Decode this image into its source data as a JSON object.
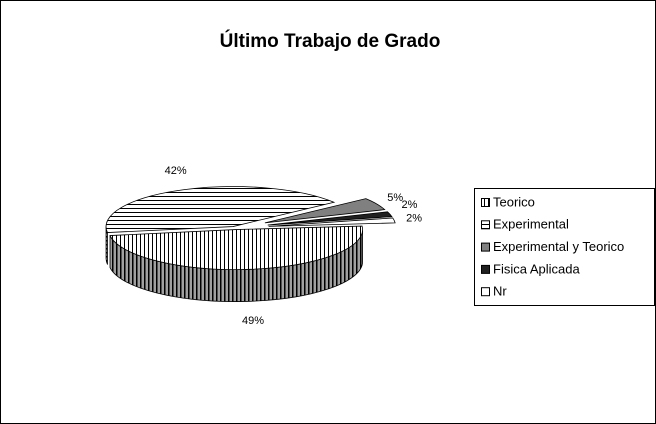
{
  "chart_data": {
    "type": "pie3d",
    "title": "Último Trabajo de Grado",
    "categories": [
      "Teorico",
      "Experimental",
      "Experimental y Teorico",
      "Fisica Aplicada",
      "Nr"
    ],
    "values": [
      49,
      42,
      5,
      2,
      2
    ],
    "value_labels": [
      "49%",
      "42%",
      "5%",
      "2%",
      "2%"
    ],
    "colors": [
      "#ffffff",
      "#ffffff",
      "#808080",
      "#202020",
      "#ffffff"
    ],
    "patterns": [
      "vertical",
      "horizontal",
      "solid",
      "solid",
      "solid"
    ],
    "legend": "right"
  }
}
